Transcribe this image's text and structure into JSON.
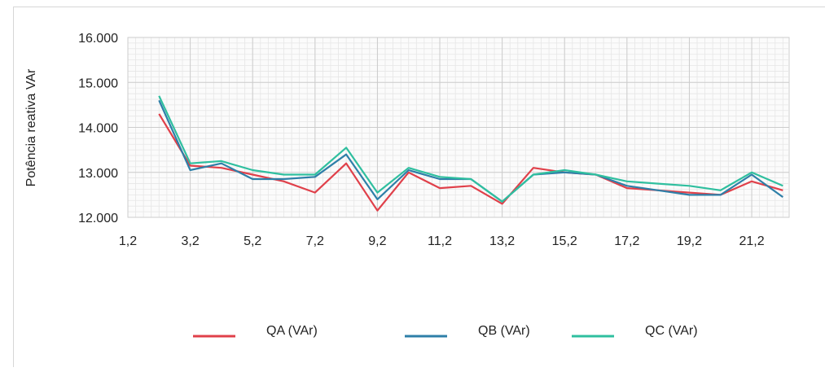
{
  "chart_data": {
    "type": "line",
    "title": "",
    "xlabel": "",
    "ylabel": "Potência reativa VAr",
    "x_ticks": [
      "1,2",
      "3,2",
      "5,2",
      "7,2",
      "9,2",
      "11,2",
      "13,2",
      "15,2",
      "17,2",
      "19,2",
      "21,2"
    ],
    "y_ticks": [
      "12.000",
      "13.000",
      "14.000",
      "15.000",
      "16.000"
    ],
    "xlim": [
      1.2,
      22.4
    ],
    "ylim": [
      12000,
      16000
    ],
    "x": [
      2.2,
      3.2,
      4.2,
      5.2,
      6.2,
      7.2,
      8.2,
      9.2,
      10.2,
      11.2,
      12.2,
      13.2,
      14.2,
      15.2,
      16.2,
      17.2,
      18.2,
      19.2,
      20.2,
      21.2,
      22.2
    ],
    "series": [
      {
        "name": "QA (VAr)",
        "color": "#e0404a",
        "values": [
          14300,
          13150,
          13100,
          12950,
          12800,
          12550,
          13200,
          12150,
          13000,
          12650,
          12700,
          12300,
          13100,
          13000,
          12950,
          12650,
          12600,
          12550,
          12500,
          12800,
          12600
        ]
      },
      {
        "name": "QB (VAr)",
        "color": "#2e7fa8",
        "values": [
          14600,
          13050,
          13200,
          12850,
          12850,
          12900,
          13400,
          12400,
          13050,
          12850,
          12850,
          12350,
          12950,
          13000,
          12950,
          12700,
          12600,
          12500,
          12500,
          12950,
          12450
        ]
      },
      {
        "name": "QC (VAr)",
        "color": "#2fbf9f",
        "values": [
          14700,
          13200,
          13250,
          13050,
          12950,
          12950,
          13550,
          12550,
          13100,
          12900,
          12850,
          12350,
          12950,
          13050,
          12950,
          12800,
          12750,
          12700,
          12600,
          13000,
          12700
        ]
      }
    ],
    "grid": true,
    "legend_position": "bottom"
  }
}
